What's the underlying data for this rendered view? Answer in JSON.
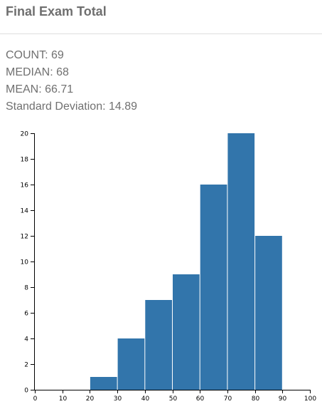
{
  "header": {
    "title": "Final Exam Total"
  },
  "stats": {
    "count": "COUNT: 69",
    "median": "MEDIAN: 68",
    "mean": "MEAN: 66.71",
    "std": "Standard Deviation: 14.89"
  },
  "colors": {
    "bar": "#3275ab",
    "axis": "#000000"
  },
  "chart_data": {
    "type": "bar",
    "title": "",
    "xlabel": "",
    "ylabel": "",
    "bins": [
      {
        "x0": 0,
        "x1": 10,
        "count": 0
      },
      {
        "x0": 10,
        "x1": 20,
        "count": 0
      },
      {
        "x0": 20,
        "x1": 30,
        "count": 1
      },
      {
        "x0": 30,
        "x1": 40,
        "count": 4
      },
      {
        "x0": 40,
        "x1": 50,
        "count": 7
      },
      {
        "x0": 50,
        "x1": 60,
        "count": 9
      },
      {
        "x0": 60,
        "x1": 70,
        "count": 16
      },
      {
        "x0": 70,
        "x1": 80,
        "count": 20
      },
      {
        "x0": 80,
        "x1": 90,
        "count": 12
      }
    ],
    "xlim": [
      0,
      100
    ],
    "ylim": [
      0,
      20
    ],
    "xticks": [
      0,
      10,
      20,
      30,
      40,
      50,
      60,
      70,
      80,
      90,
      100
    ],
    "yticks": [
      0,
      2,
      4,
      6,
      8,
      10,
      12,
      14,
      16,
      18,
      20
    ],
    "grid": false,
    "legend": "none"
  }
}
